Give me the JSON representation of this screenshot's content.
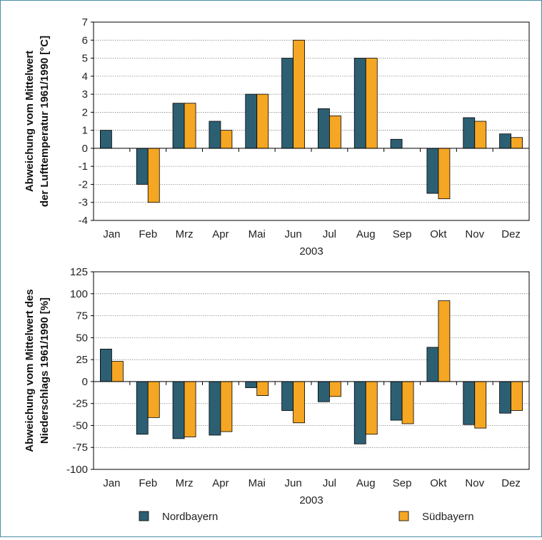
{
  "colors": {
    "nordbayern": "#2d5f73",
    "suedbayern": "#f5a623",
    "frame": "#4a90a4"
  },
  "legend": {
    "nordbayern": "Nordbayern",
    "suedbayern": "Südbayern"
  },
  "chart_data": [
    {
      "type": "bar",
      "title": "",
      "ylabel_line1": "Abweichung vom Mittelwert",
      "ylabel_line2": "der Lufttemperatur 1961/1990 [°C]",
      "xlabel": "2003",
      "ylim": [
        -4,
        7
      ],
      "yticks": [
        -4,
        -3,
        -2,
        -1,
        0,
        1,
        2,
        3,
        4,
        5,
        6,
        7
      ],
      "categories": [
        "Jan",
        "Feb",
        "Mrz",
        "Apr",
        "Mai",
        "Jun",
        "Jul",
        "Aug",
        "Sep",
        "Okt",
        "Nov",
        "Dez"
      ],
      "grid": true,
      "series": [
        {
          "name": "Nordbayern",
          "values": [
            1.0,
            -2.0,
            2.5,
            1.5,
            3.0,
            5.0,
            2.2,
            5.0,
            0.5,
            -2.5,
            1.7,
            0.8
          ]
        },
        {
          "name": "Südbayern",
          "values": [
            0.0,
            -3.0,
            2.5,
            1.0,
            3.0,
            6.0,
            1.8,
            5.0,
            0.0,
            -2.8,
            1.5,
            0.6
          ]
        }
      ]
    },
    {
      "type": "bar",
      "title": "",
      "ylabel_line1": "Abweichung vom Mittelwert des",
      "ylabel_line2": "Niederschlags 1961/1990 [%]",
      "xlabel": "2003",
      "ylim": [
        -100,
        125
      ],
      "yticks": [
        -100,
        -75,
        -50,
        -25,
        0,
        25,
        50,
        75,
        100,
        125
      ],
      "categories": [
        "Jan",
        "Feb",
        "Mrz",
        "Apr",
        "Mai",
        "Jun",
        "Jul",
        "Aug",
        "Sep",
        "Okt",
        "Nov",
        "Dez"
      ],
      "grid": true,
      "series": [
        {
          "name": "Nordbayern",
          "values": [
            37,
            -60,
            -65,
            -61,
            -7,
            -33,
            -23,
            -71,
            -44,
            39,
            -49,
            -36
          ]
        },
        {
          "name": "Südbayern",
          "values": [
            23,
            -41,
            -63,
            -57,
            -16,
            -47,
            -17,
            -60,
            -48,
            92,
            -53,
            -33
          ]
        }
      ]
    }
  ]
}
